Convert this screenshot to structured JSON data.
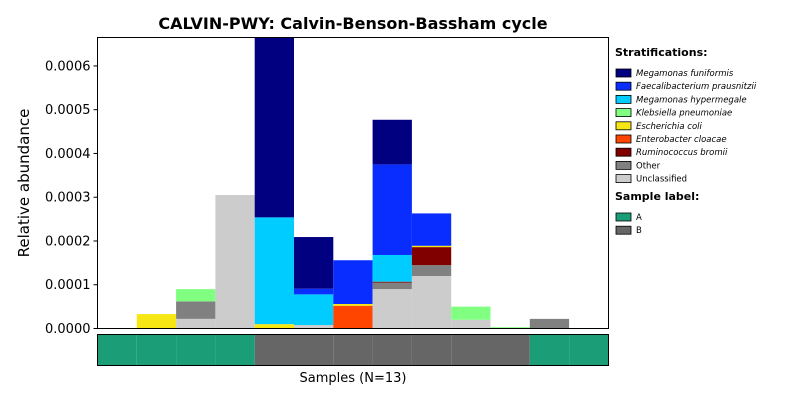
{
  "chart_data": {
    "type": "bar",
    "stacked": true,
    "title": "CALVIN-PWY: Calvin-Benson-Bassham cycle",
    "ylabel": "Relative abundance",
    "xlabel": "Samples (N=13)",
    "ylim": [
      0,
      0.000665
    ],
    "yticks": [
      "0.0000",
      "0.0001",
      "0.0002",
      "0.0003",
      "0.0004",
      "0.0005",
      "0.0006"
    ],
    "ytick_values": [
      0,
      0.0001,
      0.0002,
      0.0003,
      0.0004,
      0.0005,
      0.0006
    ],
    "sample_count": 13,
    "series": [
      {
        "name": "Unclassified",
        "color": "#cccccc",
        "values": [
          0,
          0,
          2.2e-05,
          0.000305,
          0,
          8e-06,
          0,
          9e-05,
          0.00012,
          2e-05,
          0,
          0,
          0
        ]
      },
      {
        "name": "Other",
        "color": "#808080",
        "values": [
          0,
          0,
          4e-05,
          0,
          0,
          0,
          0,
          1.5e-05,
          2.5e-05,
          0,
          0,
          2.2e-05,
          0
        ]
      },
      {
        "name": "Ruminococcus bromii",
        "color": "#800000",
        "values": [
          0,
          0,
          0,
          0,
          0,
          0,
          0,
          2e-06,
          4.1e-05,
          0,
          0,
          0,
          0
        ]
      },
      {
        "name": "Enterobacter cloacae",
        "color": "#ff4500",
        "values": [
          0,
          0,
          0,
          0,
          0,
          0,
          5.2e-05,
          0,
          0,
          0,
          0,
          0,
          0
        ]
      },
      {
        "name": "Escherichia coli",
        "color": "#f5e614",
        "values": [
          0,
          3.3e-05,
          0,
          0,
          1e-05,
          0,
          4e-06,
          0,
          3e-06,
          0,
          0,
          0,
          0
        ]
      },
      {
        "name": "Klebsiella pneumoniae",
        "color": "#80ff80",
        "values": [
          0,
          0,
          2.8e-05,
          0,
          0,
          0,
          0,
          0,
          0,
          3e-05,
          3e-06,
          0,
          0
        ]
      },
      {
        "name": "Megamonas hypermegale",
        "color": "#00ccff",
        "values": [
          0,
          0,
          0,
          0,
          0.000244,
          7e-05,
          0,
          6.1e-05,
          0,
          0,
          0,
          0,
          0
        ]
      },
      {
        "name": "Faecalibacterium prausnitzii",
        "color": "#0a2dff",
        "values": [
          0,
          0,
          0,
          0,
          0,
          1.3e-05,
          0.0001,
          0.000207,
          7.4e-05,
          0,
          0,
          0,
          0
        ]
      },
      {
        "name": "Megamonas funiformis",
        "color": "#000080",
        "values": [
          0,
          0,
          0,
          0,
          0.000411,
          0.000118,
          0,
          0.000102,
          0,
          0,
          0,
          0,
          0
        ]
      }
    ],
    "legend": {
      "title": "Stratifications:",
      "placement": "right",
      "items": [
        "Megamonas funiformis",
        "Faecalibacterium prausnitzii",
        "Megamonas hypermegale",
        "Klebsiella pneumoniae",
        "Escherichia coli",
        "Enterobacter cloacae",
        "Ruminococcus bromii",
        "Other",
        "Unclassified"
      ],
      "colors": [
        "#000080",
        "#0a2dff",
        "#00ccff",
        "#80ff80",
        "#f5e614",
        "#ff4500",
        "#800000",
        "#808080",
        "#cccccc"
      ],
      "italic": [
        true,
        true,
        true,
        true,
        true,
        true,
        true,
        false,
        false
      ]
    },
    "sample_labels": {
      "title": "Sample label:",
      "categories": [
        "A",
        "B"
      ],
      "colors": [
        "#1b9e77",
        "#666666"
      ],
      "assignment": [
        "A",
        "A",
        "A",
        "A",
        "B",
        "B",
        "B",
        "B",
        "B",
        "B",
        "B",
        "A",
        "A"
      ]
    }
  }
}
